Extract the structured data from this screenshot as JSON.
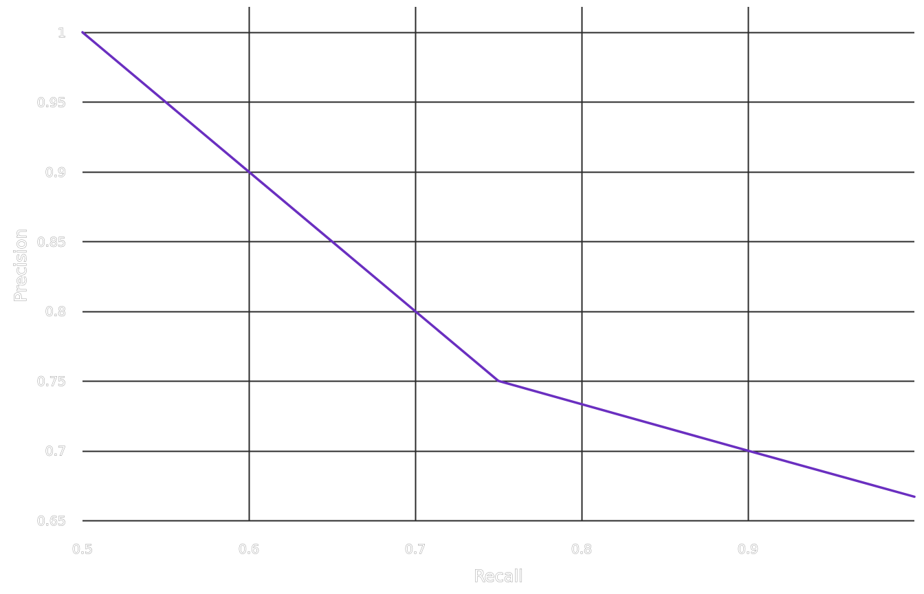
{
  "chart_data": {
    "type": "line",
    "xlabel": "Recall",
    "ylabel": "Precision",
    "xlim": [
      0.5,
      1.0
    ],
    "ylim": [
      0.65,
      1.0
    ],
    "xticks": [
      0.5,
      0.6,
      0.7,
      0.8,
      0.9
    ],
    "xtick_labels": [
      "0.5",
      "0.6",
      "0.7",
      "0.8",
      "0.9"
    ],
    "yticks": [
      0.65,
      0.7,
      0.75,
      0.8,
      0.85,
      0.9,
      0.95,
      1.0
    ],
    "ytick_labels": [
      "0.65",
      "0.7",
      "0.75",
      "0.8",
      "0.85",
      "0.9",
      "0.95",
      "1"
    ],
    "grid": true,
    "legend": "none",
    "series": [
      {
        "color": "#6a2fc0",
        "x": [
          0.5,
          0.6,
          0.7,
          0.75,
          0.9,
          1.0
        ],
        "y": [
          1.0,
          0.9,
          0.8,
          0.75,
          0.7,
          0.667
        ]
      }
    ]
  }
}
